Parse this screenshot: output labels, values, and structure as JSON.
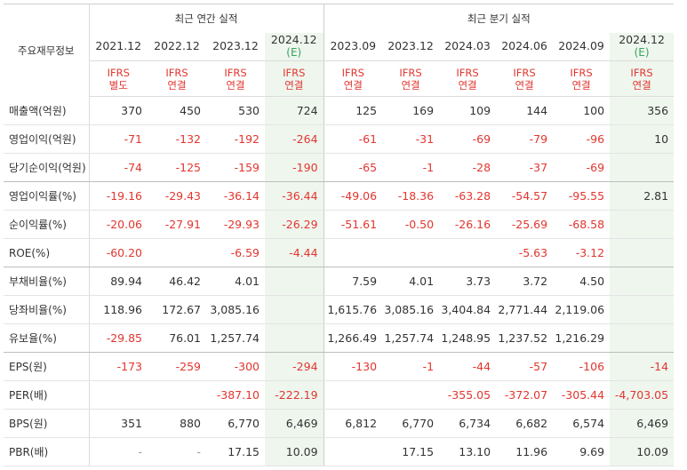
{
  "header": {
    "row_label": "주요재무정보",
    "annual_group": "최근 연간 실적",
    "quarterly_group": "최근 분기 실적"
  },
  "periods": [
    {
      "period": "2021.12",
      "est": "",
      "ifrs1": "IFRS",
      "ifrs2": "별도"
    },
    {
      "period": "2022.12",
      "est": "",
      "ifrs1": "IFRS",
      "ifrs2": "연결"
    },
    {
      "period": "2023.12",
      "est": "",
      "ifrs1": "IFRS",
      "ifrs2": "연결"
    },
    {
      "period": "2024.12",
      "est": "(E)",
      "ifrs1": "IFRS",
      "ifrs2": "연결"
    },
    {
      "period": "2023.09",
      "est": "",
      "ifrs1": "IFRS",
      "ifrs2": "연결"
    },
    {
      "period": "2023.12",
      "est": "",
      "ifrs1": "IFRS",
      "ifrs2": "연결"
    },
    {
      "period": "2024.03",
      "est": "",
      "ifrs1": "IFRS",
      "ifrs2": "연결"
    },
    {
      "period": "2024.06",
      "est": "",
      "ifrs1": "IFRS",
      "ifrs2": "연결"
    },
    {
      "period": "2024.09",
      "est": "",
      "ifrs1": "IFRS",
      "ifrs2": "연결"
    },
    {
      "period": "2024.12",
      "est": "(E)",
      "ifrs1": "IFRS",
      "ifrs2": "연결"
    }
  ],
  "rows": [
    {
      "label": "매출액(억원)",
      "values": [
        "370",
        "450",
        "530",
        "724",
        "125",
        "169",
        "109",
        "144",
        "100",
        "356"
      ]
    },
    {
      "label": "영업이익(억원)",
      "values": [
        "-71",
        "-132",
        "-192",
        "-264",
        "-61",
        "-31",
        "-69",
        "-79",
        "-96",
        "10"
      ]
    },
    {
      "label": "당기순이익(억원)",
      "values": [
        "-74",
        "-125",
        "-159",
        "-190",
        "-65",
        "-1",
        "-28",
        "-37",
        "-69",
        ""
      ]
    },
    {
      "label": "영업이익률(%)",
      "values": [
        "-19.16",
        "-29.43",
        "-36.14",
        "-36.44",
        "-49.06",
        "-18.36",
        "-63.28",
        "-54.57",
        "-95.55",
        "2.81"
      ]
    },
    {
      "label": "순이익률(%)",
      "values": [
        "-20.06",
        "-27.91",
        "-29.93",
        "-26.29",
        "-51.61",
        "-0.50",
        "-26.16",
        "-25.69",
        "-68.58",
        ""
      ]
    },
    {
      "label": "ROE(%)",
      "values": [
        "-60.20",
        "",
        "-6.59",
        "-4.44",
        "",
        "",
        "",
        "-5.63",
        "-3.12",
        ""
      ]
    },
    {
      "label": "부채비율(%)",
      "values": [
        "89.94",
        "46.42",
        "4.01",
        "",
        "7.59",
        "4.01",
        "3.73",
        "3.72",
        "4.50",
        ""
      ]
    },
    {
      "label": "당좌비율(%)",
      "values": [
        "118.96",
        "172.67",
        "3,085.16",
        "",
        "1,615.76",
        "3,085.16",
        "3,404.84",
        "2,771.44",
        "2,119.06",
        ""
      ]
    },
    {
      "label": "유보율(%)",
      "values": [
        "-29.85",
        "76.01",
        "1,257.74",
        "",
        "1,266.49",
        "1,257.74",
        "1,248.95",
        "1,237.52",
        "1,216.29",
        ""
      ]
    },
    {
      "label": "EPS(원)",
      "values": [
        "-173",
        "-259",
        "-300",
        "-294",
        "-130",
        "-1",
        "-44",
        "-57",
        "-106",
        "-14"
      ]
    },
    {
      "label": "PER(배)",
      "values": [
        "",
        "",
        "-387.10",
        "-222.19",
        "",
        "",
        "-355.05",
        "-372.07",
        "-305.44",
        "-4,703.05"
      ]
    },
    {
      "label": "BPS(원)",
      "values": [
        "351",
        "880",
        "6,770",
        "6,469",
        "6,812",
        "6,770",
        "6,734",
        "6,682",
        "6,574",
        "6,469"
      ]
    },
    {
      "label": "PBR(배)",
      "values": [
        "-",
        "-",
        "17.15",
        "10.09",
        "",
        "17.15",
        "13.10",
        "11.96",
        "9.69",
        "10.09"
      ]
    }
  ],
  "group_end_rows": [
    2,
    5,
    8
  ],
  "colors": {
    "negative": "#e2362f",
    "estimate_bg": "#eef6ee",
    "estimate_label": "#3aa35c",
    "ifrs_label": "#e2362f"
  }
}
